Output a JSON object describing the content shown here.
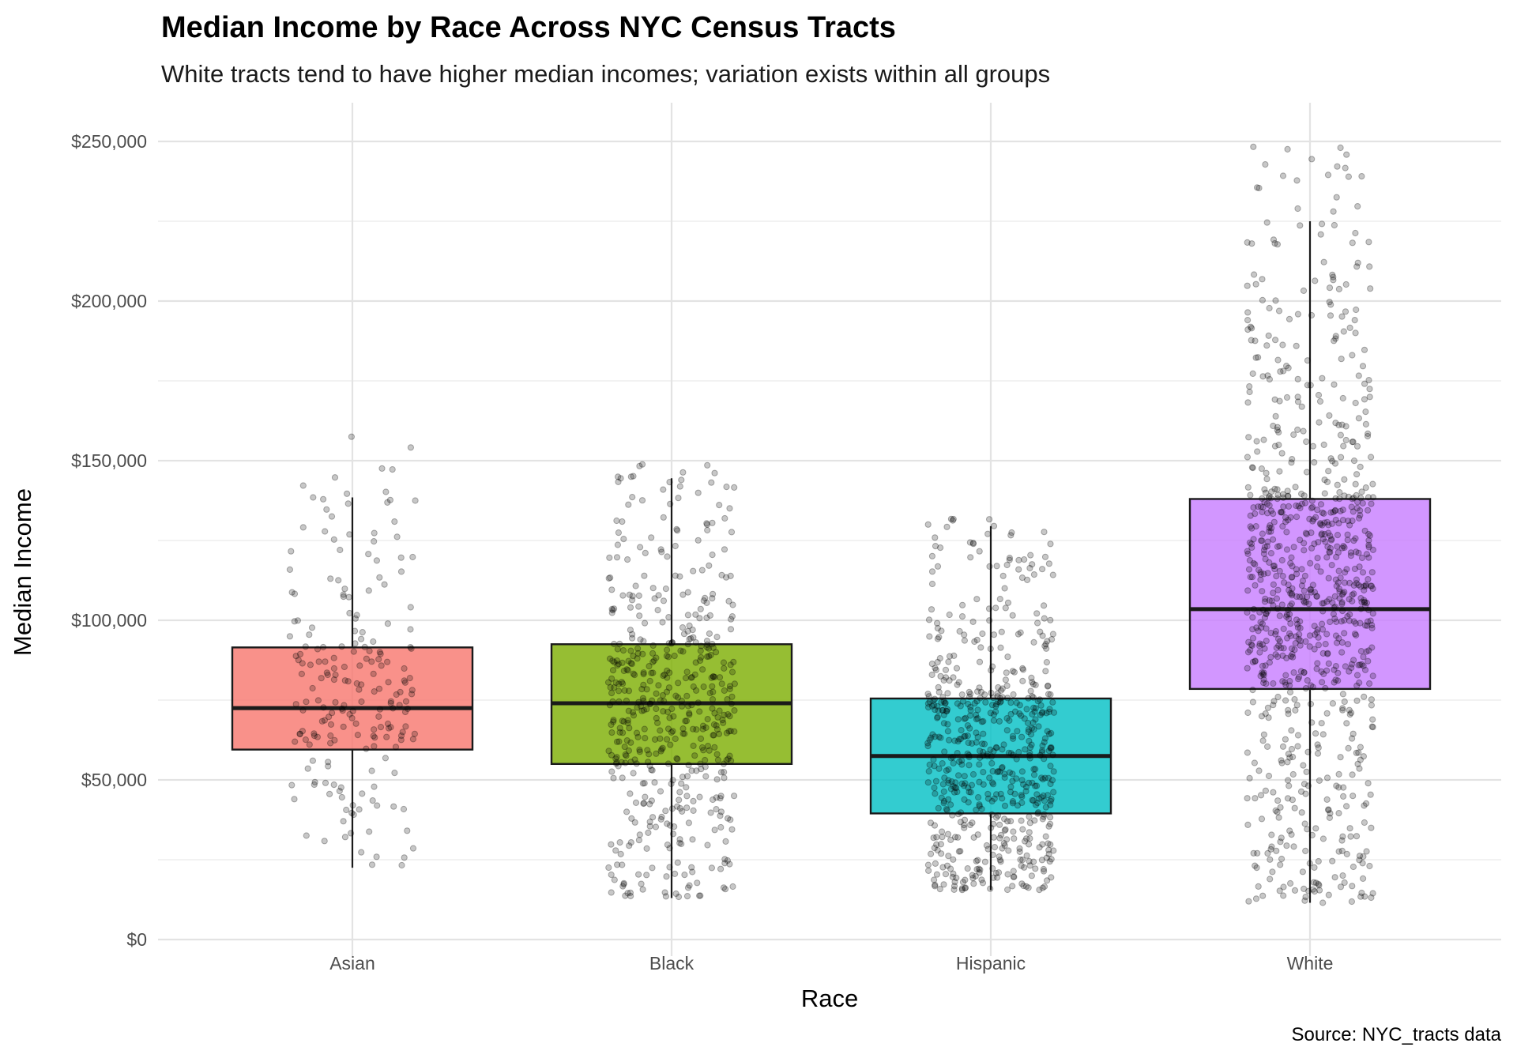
{
  "chart_data": {
    "type": "boxplot",
    "title": "Median Income by Race Across NYC Census Tracts",
    "subtitle": "White tracts tend to have higher median incomes; variation exists within all groups",
    "caption": "Source: NYC_tracts data",
    "xlabel": "Race",
    "ylabel": "Median Income",
    "ylim": [
      0,
      260000
    ],
    "y_ticks": [
      0,
      50000,
      100000,
      150000,
      200000,
      250000
    ],
    "y_tick_labels": [
      "$0",
      "$50,000",
      "$100,000",
      "$150,000",
      "$200,000",
      "$250,000"
    ],
    "grid": true,
    "legend": "none",
    "categories": [
      "Asian",
      "Black",
      "Hispanic",
      "White"
    ],
    "boxes": [
      {
        "category": "Asian",
        "whisker_low": 22500,
        "q1": 59500,
        "median": 72500,
        "q3": 91500,
        "whisker_high": 138500,
        "color": "#F8766D"
      },
      {
        "category": "Black",
        "whisker_low": 13000,
        "q1": 55000,
        "median": 74000,
        "q3": 92500,
        "whisker_high": 144500,
        "color": "#7CAE00"
      },
      {
        "category": "Hispanic",
        "whisker_low": 15500,
        "q1": 39500,
        "median": 57500,
        "q3": 75500,
        "whisker_high": 129500,
        "color": "#00BFC4"
      },
      {
        "category": "White",
        "whisker_low": 11500,
        "q1": 78500,
        "median": 103500,
        "q3": 138000,
        "whisker_high": 225000,
        "color": "#C77CFF"
      }
    ],
    "jitter_points": [
      {
        "category": "Asian",
        "approx_count": 210,
        "min": 22000,
        "max": 158000
      },
      {
        "category": "Black",
        "approx_count": 520,
        "min": 12500,
        "max": 150000
      },
      {
        "category": "Hispanic",
        "approx_count": 620,
        "min": 15000,
        "max": 132000
      },
      {
        "category": "White",
        "approx_count": 880,
        "min": 11000,
        "max": 250000
      }
    ]
  }
}
